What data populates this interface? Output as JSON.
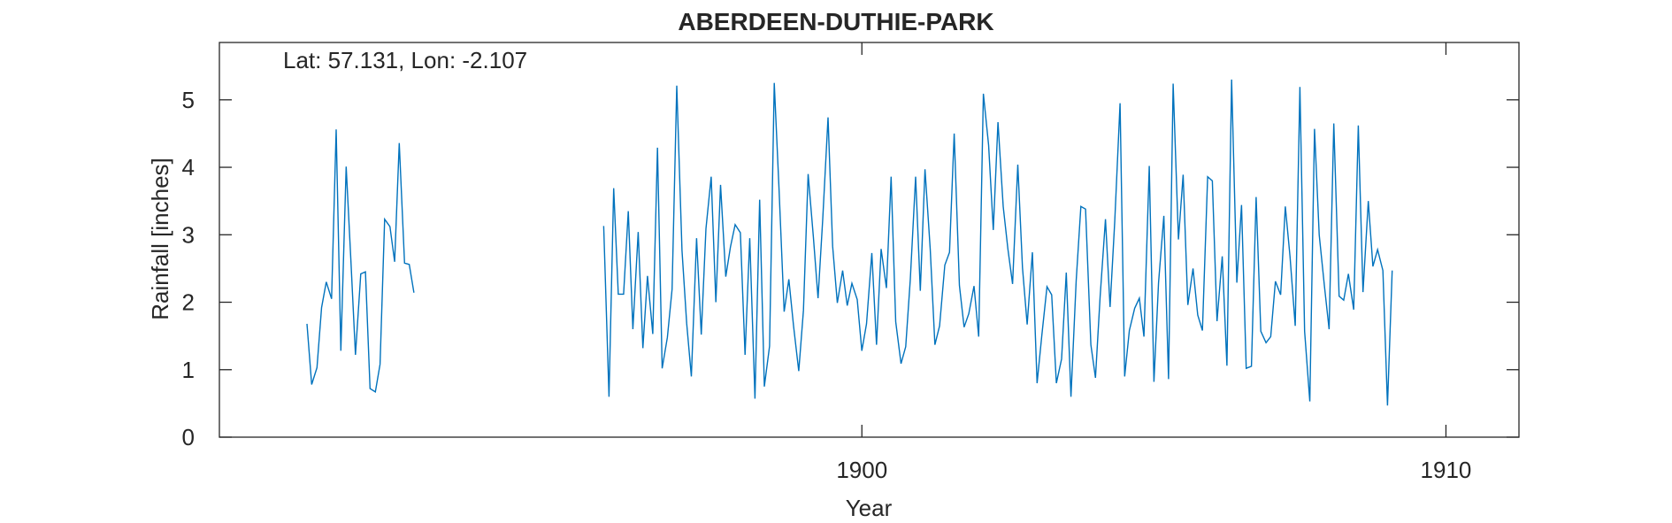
{
  "chart_data": {
    "type": "line",
    "title": "ABERDEEN-DUTHIE-PARK",
    "annotation": "Lat: 57.131, Lon: -2.107",
    "xlabel": "Year",
    "ylabel": "Rainfall [inches]",
    "xlim": [
      1889.0,
      1911.25
    ],
    "ylim": [
      0,
      5.85
    ],
    "xticks": [
      1900,
      1910
    ],
    "yticks": [
      0,
      1,
      2,
      3,
      4,
      5
    ],
    "grid": false,
    "line_color": "#0072BD",
    "series": [
      {
        "values": [
          [
            1890.5,
            1.68
          ],
          [
            1890.58,
            0.78
          ],
          [
            1890.67,
            1.03
          ],
          [
            1890.75,
            1.92
          ],
          [
            1890.83,
            2.3
          ],
          [
            1890.92,
            2.05
          ],
          [
            1891.0,
            4.56
          ],
          [
            1891.08,
            1.28
          ],
          [
            1891.17,
            4.01
          ],
          [
            1891.25,
            2.63
          ],
          [
            1891.33,
            1.22
          ],
          [
            1891.42,
            2.42
          ],
          [
            1891.5,
            2.45
          ],
          [
            1891.58,
            0.72
          ],
          [
            1891.67,
            0.67
          ],
          [
            1891.75,
            1.08
          ],
          [
            1891.83,
            3.23
          ],
          [
            1891.92,
            3.12
          ],
          [
            1892.0,
            2.6
          ],
          [
            1892.08,
            4.36
          ],
          [
            1892.17,
            2.58
          ],
          [
            1892.25,
            2.56
          ],
          [
            1892.33,
            2.14
          ],
          null,
          [
            1895.58,
            3.13
          ],
          [
            1895.67,
            0.6
          ],
          [
            1895.75,
            3.69
          ],
          [
            1895.83,
            2.12
          ],
          [
            1895.92,
            2.12
          ],
          [
            1896.0,
            3.35
          ],
          [
            1896.08,
            1.6
          ],
          [
            1896.17,
            3.04
          ],
          [
            1896.25,
            1.32
          ],
          [
            1896.33,
            2.39
          ],
          [
            1896.42,
            1.53
          ],
          [
            1896.5,
            4.29
          ],
          [
            1896.58,
            1.02
          ],
          [
            1896.67,
            1.48
          ],
          [
            1896.75,
            2.19
          ],
          [
            1896.83,
            5.21
          ],
          [
            1896.92,
            2.77
          ],
          [
            1897.0,
            1.69
          ],
          [
            1897.08,
            0.9
          ],
          [
            1897.17,
            2.95
          ],
          [
            1897.25,
            1.52
          ],
          [
            1897.33,
            3.09
          ],
          [
            1897.42,
            3.86
          ],
          [
            1897.5,
            2.0
          ],
          [
            1897.58,
            3.74
          ],
          [
            1897.67,
            2.38
          ],
          [
            1897.75,
            2.82
          ],
          [
            1897.83,
            3.15
          ],
          [
            1897.92,
            3.03
          ],
          [
            1898.0,
            1.22
          ],
          [
            1898.08,
            2.95
          ],
          [
            1898.17,
            0.57
          ],
          [
            1898.25,
            3.52
          ],
          [
            1898.33,
            0.75
          ],
          [
            1898.42,
            1.35
          ],
          [
            1898.5,
            5.25
          ],
          [
            1898.58,
            3.71
          ],
          [
            1898.67,
            1.86
          ],
          [
            1898.75,
            2.34
          ],
          [
            1898.83,
            1.65
          ],
          [
            1898.92,
            0.98
          ],
          [
            1899.0,
            1.88
          ],
          [
            1899.08,
            3.9
          ],
          [
            1899.17,
            2.97
          ],
          [
            1899.25,
            2.06
          ],
          [
            1899.33,
            3.23
          ],
          [
            1899.42,
            4.74
          ],
          [
            1899.5,
            2.83
          ],
          [
            1899.58,
            1.99
          ],
          [
            1899.67,
            2.47
          ],
          [
            1899.75,
            1.95
          ],
          [
            1899.83,
            2.28
          ],
          [
            1899.92,
            2.04
          ],
          [
            1900.0,
            1.28
          ],
          [
            1900.08,
            1.68
          ],
          [
            1900.17,
            2.73
          ],
          [
            1900.25,
            1.37
          ],
          [
            1900.33,
            2.79
          ],
          [
            1900.42,
            2.21
          ],
          [
            1900.5,
            3.86
          ],
          [
            1900.58,
            1.71
          ],
          [
            1900.67,
            1.09
          ],
          [
            1900.75,
            1.34
          ],
          [
            1900.83,
            2.34
          ],
          [
            1900.92,
            3.86
          ],
          [
            1901.0,
            2.17
          ],
          [
            1901.08,
            3.97
          ],
          [
            1901.17,
            2.79
          ],
          [
            1901.25,
            1.37
          ],
          [
            1901.33,
            1.65
          ],
          [
            1901.42,
            2.55
          ],
          [
            1901.5,
            2.74
          ],
          [
            1901.58,
            4.5
          ],
          [
            1901.67,
            2.25
          ],
          [
            1901.75,
            1.63
          ],
          [
            1901.83,
            1.83
          ],
          [
            1901.92,
            2.24
          ],
          [
            1902.0,
            1.49
          ],
          [
            1902.08,
            5.09
          ],
          [
            1902.17,
            4.33
          ],
          [
            1902.25,
            3.07
          ],
          [
            1902.33,
            4.67
          ],
          [
            1902.42,
            3.42
          ],
          [
            1902.5,
            2.79
          ],
          [
            1902.58,
            2.27
          ],
          [
            1902.67,
            4.04
          ],
          [
            1902.75,
            2.51
          ],
          [
            1902.83,
            1.67
          ],
          [
            1902.92,
            2.74
          ],
          [
            1903.0,
            0.8
          ],
          [
            1903.08,
            1.5
          ],
          [
            1903.17,
            2.23
          ],
          [
            1903.25,
            2.11
          ],
          [
            1903.33,
            0.8
          ],
          [
            1903.42,
            1.16
          ],
          [
            1903.5,
            2.44
          ],
          [
            1903.58,
            0.6
          ],
          [
            1903.67,
            2.32
          ],
          [
            1903.75,
            3.42
          ],
          [
            1903.83,
            3.38
          ],
          [
            1903.92,
            1.37
          ],
          [
            1904.0,
            0.88
          ],
          [
            1904.08,
            2.09
          ],
          [
            1904.17,
            3.23
          ],
          [
            1904.25,
            1.93
          ],
          [
            1904.33,
            3.2
          ],
          [
            1904.42,
            4.95
          ],
          [
            1904.5,
            0.9
          ],
          [
            1904.58,
            1.58
          ],
          [
            1904.67,
            1.91
          ],
          [
            1904.75,
            2.06
          ],
          [
            1904.83,
            1.49
          ],
          [
            1904.92,
            4.02
          ],
          [
            1905.0,
            0.82
          ],
          [
            1905.08,
            2.29
          ],
          [
            1905.17,
            3.28
          ],
          [
            1905.25,
            0.86
          ],
          [
            1905.33,
            5.24
          ],
          [
            1905.42,
            2.93
          ],
          [
            1905.5,
            3.89
          ],
          [
            1905.58,
            1.96
          ],
          [
            1905.67,
            2.5
          ],
          [
            1905.75,
            1.81
          ],
          [
            1905.83,
            1.58
          ],
          [
            1905.92,
            3.86
          ],
          [
            1906.0,
            3.8
          ],
          [
            1906.08,
            1.72
          ],
          [
            1906.17,
            2.68
          ],
          [
            1906.25,
            1.06
          ],
          [
            1906.33,
            5.3
          ],
          [
            1906.42,
            2.29
          ],
          [
            1906.5,
            3.44
          ],
          [
            1906.58,
            1.02
          ],
          [
            1906.67,
            1.05
          ],
          [
            1906.75,
            3.56
          ],
          [
            1906.83,
            1.57
          ],
          [
            1906.92,
            1.4
          ],
          [
            1907.0,
            1.49
          ],
          [
            1907.08,
            2.31
          ],
          [
            1907.17,
            2.11
          ],
          [
            1907.25,
            3.42
          ],
          [
            1907.33,
            2.68
          ],
          [
            1907.42,
            1.65
          ],
          [
            1907.5,
            5.19
          ],
          [
            1907.58,
            1.57
          ],
          [
            1907.67,
            0.53
          ],
          [
            1907.75,
            4.57
          ],
          [
            1907.83,
            3.0
          ],
          [
            1907.92,
            2.24
          ],
          [
            1908.0,
            1.6
          ],
          [
            1908.08,
            4.65
          ],
          [
            1908.17,
            2.09
          ],
          [
            1908.25,
            2.03
          ],
          [
            1908.33,
            2.42
          ],
          [
            1908.42,
            1.89
          ],
          [
            1908.5,
            4.62
          ],
          [
            1908.58,
            2.15
          ],
          [
            1908.67,
            3.5
          ],
          [
            1908.75,
            2.53
          ],
          [
            1908.83,
            2.78
          ],
          [
            1908.92,
            2.47
          ],
          [
            1909.0,
            0.47
          ],
          [
            1909.08,
            2.47
          ]
        ]
      }
    ]
  }
}
